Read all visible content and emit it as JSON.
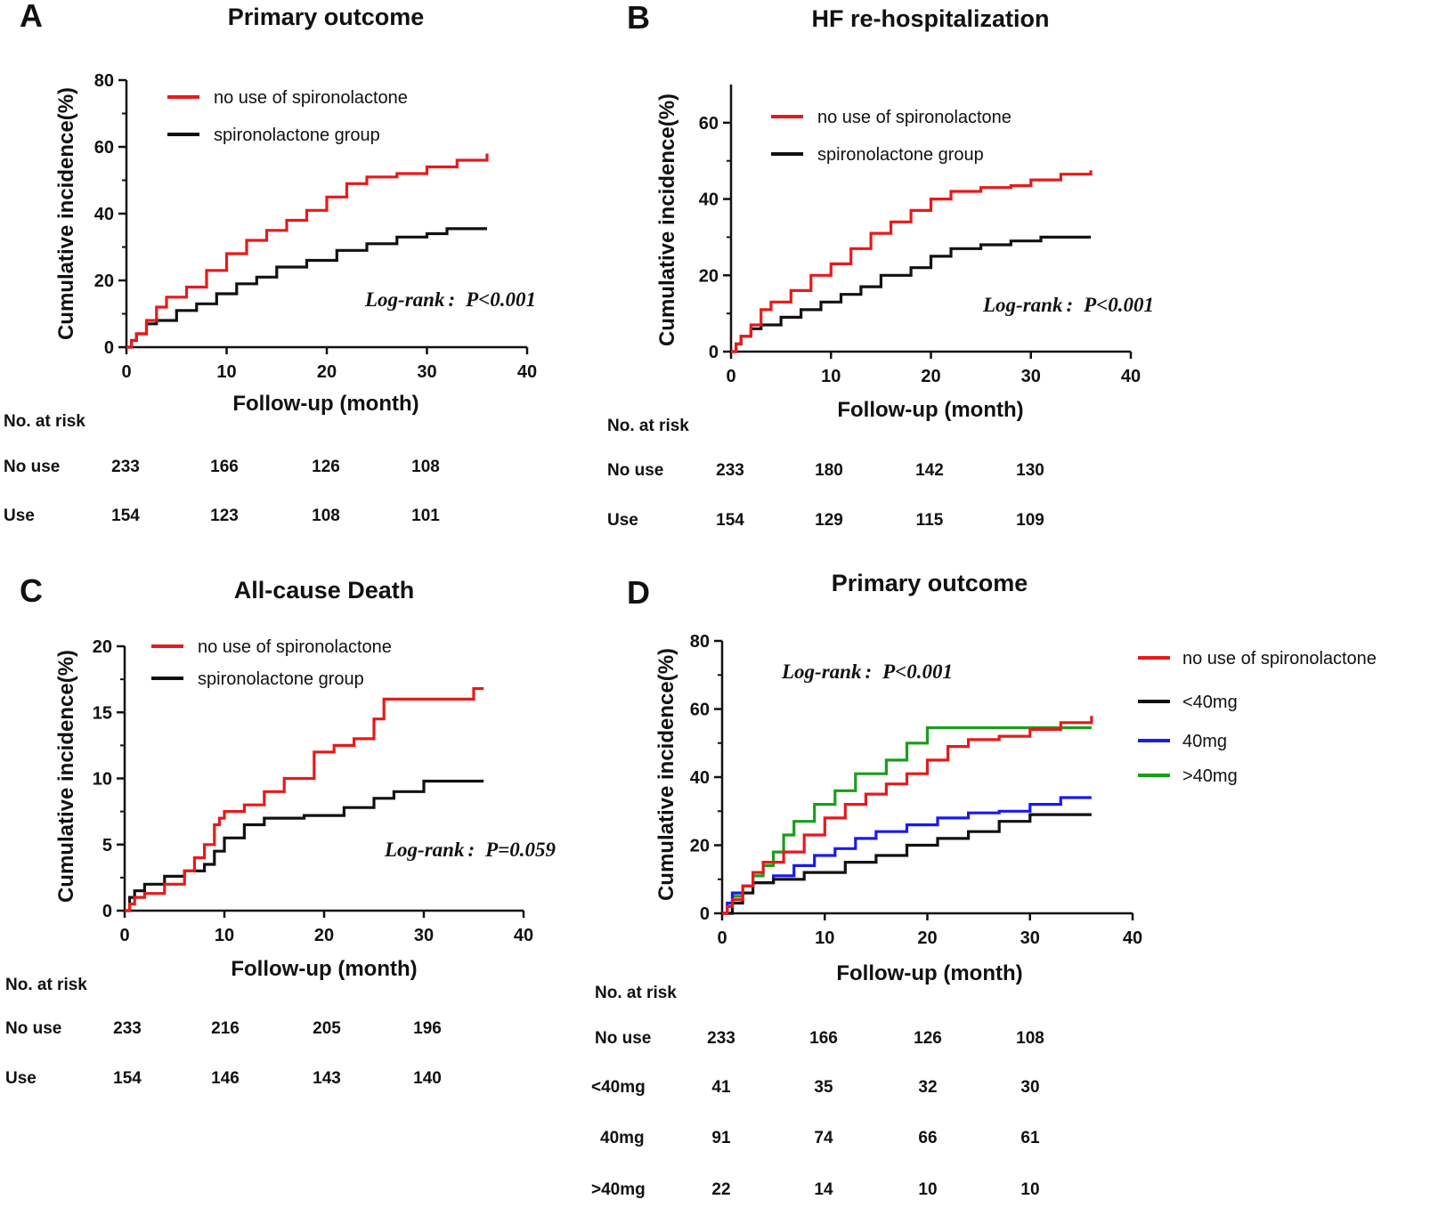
{
  "chart_data": [
    {
      "panel": "A",
      "type": "line",
      "step": true,
      "title": "Primary outcome",
      "xlabel": "Follow-up (month)",
      "ylabel": "Cumulative incidence(%)",
      "xlim": [
        0,
        40
      ],
      "ylim": [
        0,
        80
      ],
      "xticks": [
        0,
        10,
        20,
        30,
        40
      ],
      "yticks": [
        0,
        20,
        40,
        60,
        80
      ],
      "legend_position": "top-left",
      "annotation": {
        "prefix": "Log-rank",
        "sep": ":",
        "pvalue": "P<0.001"
      },
      "series": [
        {
          "name": "no use of spironolactone",
          "color": "#e81919",
          "x": [
            0,
            0.5,
            1,
            2,
            3,
            4,
            6,
            8,
            10,
            12,
            14,
            16,
            18,
            20,
            22,
            24,
            27,
            30,
            33,
            36
          ],
          "y": [
            0,
            2,
            4,
            8,
            12,
            15,
            18,
            23,
            28,
            32,
            35,
            38,
            41,
            45,
            49,
            51,
            52,
            54,
            56,
            58
          ]
        },
        {
          "name": "spironolactone group",
          "color": "#111111",
          "x": [
            0,
            0.5,
            1,
            2,
            3,
            5,
            7,
            9,
            11,
            13,
            15,
            18,
            21,
            24,
            27,
            30,
            32,
            36
          ],
          "y": [
            0,
            2,
            4,
            7,
            8,
            11,
            13,
            16,
            19,
            21,
            24,
            26,
            29,
            31,
            33,
            34,
            35.5,
            35.5
          ]
        }
      ],
      "risk_table": {
        "header": "No. at risk",
        "times": [
          0,
          10,
          20,
          30
        ],
        "rows": [
          {
            "label": "No use",
            "values": [
              "233",
              "166",
              "126",
              "108"
            ]
          },
          {
            "label": "Use",
            "values": [
              "154",
              "123",
              "108",
              "101"
            ]
          }
        ]
      }
    },
    {
      "panel": "B",
      "type": "line",
      "step": true,
      "title": "HF re-hospitalization",
      "xlabel": "Follow-up (month)",
      "ylabel": "Cumulative incidence(%)",
      "xlim": [
        0,
        40
      ],
      "ylim": [
        0,
        70
      ],
      "xticks": [
        0,
        10,
        20,
        30,
        40
      ],
      "yticks": [
        0,
        20,
        40,
        60
      ],
      "legend_position": "top-left",
      "annotation": {
        "prefix": "Log-rank",
        "sep": ":",
        "pvalue": "P<0.001"
      },
      "series": [
        {
          "name": "no use of spironolactone",
          "color": "#e81919",
          "x": [
            0,
            0.5,
            1,
            2,
            3,
            4,
            6,
            8,
            10,
            12,
            14,
            16,
            18,
            20,
            22,
            25,
            28,
            30,
            33,
            36
          ],
          "y": [
            0,
            2,
            4,
            7,
            11,
            13,
            16,
            20,
            23,
            27,
            31,
            34,
            37,
            40,
            42,
            43,
            43.5,
            45,
            46.5,
            47.5
          ]
        },
        {
          "name": "spironolactone group",
          "color": "#111111",
          "x": [
            0,
            0.5,
            1,
            2,
            3,
            5,
            7,
            9,
            11,
            13,
            15,
            18,
            20,
            22,
            25,
            28,
            31,
            36
          ],
          "y": [
            0,
            2,
            4,
            6,
            7,
            9,
            11,
            13,
            15,
            17,
            20,
            22,
            25,
            27,
            28,
            29,
            30,
            30
          ]
        }
      ],
      "risk_table": {
        "header": "No. at risk",
        "times": [
          0,
          10,
          20,
          30
        ],
        "rows": [
          {
            "label": "No use",
            "values": [
              "233",
              "180",
              "142",
              "130"
            ]
          },
          {
            "label": "Use",
            "values": [
              "154",
              "129",
              "115",
              "109"
            ]
          }
        ]
      }
    },
    {
      "panel": "C",
      "type": "line",
      "step": true,
      "title": "All-cause Death",
      "xlabel": "Follow-up (month)",
      "ylabel": "Cumulative incidence(%)",
      "xlim": [
        0,
        40
      ],
      "ylim": [
        0,
        20
      ],
      "xticks": [
        0,
        10,
        20,
        30,
        40
      ],
      "yticks": [
        0,
        5,
        10,
        15,
        20
      ],
      "legend_position": "top-left",
      "annotation": {
        "prefix": "Log-rank",
        "sep": ":",
        "pvalue": "P=0.059"
      },
      "series": [
        {
          "name": "no use of spironolactone",
          "color": "#e81919",
          "x": [
            0,
            0.5,
            1,
            2,
            4,
            6,
            7,
            8,
            9,
            9.5,
            10,
            12,
            14,
            16,
            19,
            21,
            23,
            25,
            26,
            30,
            33,
            35,
            36
          ],
          "y": [
            0,
            0.5,
            1,
            1.3,
            2,
            3,
            4,
            5,
            6.5,
            7,
            7.5,
            8,
            9,
            10,
            12,
            12.5,
            13,
            14.5,
            16,
            16,
            16,
            16.8,
            16.8
          ]
        },
        {
          "name": "spironolactone group",
          "color": "#111111",
          "x": [
            0,
            0.5,
            1,
            2,
            4,
            6,
            8,
            9,
            10,
            12,
            14,
            18,
            22,
            25,
            27,
            30,
            36
          ],
          "y": [
            0,
            1,
            1.5,
            2,
            2.6,
            3,
            3.5,
            4.5,
            5.5,
            6.5,
            7,
            7.2,
            7.8,
            8.5,
            9,
            9.8,
            9.8
          ]
        }
      ],
      "risk_table": {
        "header": "No. at risk",
        "times": [
          0,
          10,
          20,
          30
        ],
        "rows": [
          {
            "label": "No use",
            "values": [
              "233",
              "216",
              "205",
              "196"
            ]
          },
          {
            "label": "Use",
            "values": [
              "154",
              "146",
              "143",
              "140"
            ]
          }
        ]
      }
    },
    {
      "panel": "D",
      "type": "line",
      "step": true,
      "title": "Primary outcome",
      "xlabel": "Follow-up (month)",
      "ylabel": "Cumulative incidence(%)",
      "xlim": [
        0,
        40
      ],
      "ylim": [
        0,
        80
      ],
      "xticks": [
        0,
        10,
        20,
        30,
        40
      ],
      "yticks": [
        0,
        20,
        40,
        60,
        80
      ],
      "legend_position": "right",
      "annotation": {
        "prefix": "Log-rank",
        "sep": ":",
        "pvalue": "P<0.001"
      },
      "series": [
        {
          "name": "no use of spironolactone",
          "color": "#e81919",
          "x": [
            0,
            0.5,
            1,
            2,
            3,
            4,
            6,
            8,
            10,
            12,
            14,
            16,
            18,
            20,
            22,
            24,
            27,
            30,
            33,
            36
          ],
          "y": [
            0,
            2,
            4,
            8,
            12,
            15,
            18,
            23,
            28,
            32,
            35,
            38,
            41,
            45,
            49,
            51,
            52,
            54,
            56,
            58
          ]
        },
        {
          "name": "<40mg",
          "color": "#111111",
          "x": [
            0,
            1,
            2,
            3,
            5,
            8,
            12,
            15,
            18,
            21,
            24,
            27,
            30,
            36
          ],
          "y": [
            0,
            3,
            6,
            9,
            10,
            12,
            15,
            17,
            20,
            22,
            24,
            27,
            29,
            29
          ]
        },
        {
          "name": "40mg",
          "color": "#1a1aee",
          "x": [
            0,
            0.5,
            1,
            2,
            3,
            5,
            7,
            9,
            11,
            13,
            15,
            18,
            21,
            24,
            27,
            30,
            33,
            36
          ],
          "y": [
            0,
            3,
            6,
            8,
            9,
            11,
            14,
            17,
            19,
            22,
            24,
            26,
            28,
            29.5,
            30,
            32,
            34,
            34
          ]
        },
        {
          "name": ">40mg",
          "color": "#1a9e1a",
          "x": [
            0,
            1,
            2,
            3,
            4,
            5,
            6,
            7,
            9,
            11,
            13,
            16,
            18,
            20,
            36
          ],
          "y": [
            0,
            5,
            8,
            11,
            14,
            18,
            23,
            27,
            32,
            36,
            41,
            45,
            50,
            54.5,
            54.5
          ]
        }
      ],
      "risk_table": {
        "header": "No. at risk",
        "times": [
          0,
          10,
          20,
          30
        ],
        "rows": [
          {
            "label": "No use",
            "values": [
              "233",
              "166",
              "126",
              "108"
            ]
          },
          {
            "label": "<40mg",
            "values": [
              "41",
              "35",
              "32",
              "30"
            ]
          },
          {
            "label": "40mg",
            "values": [
              "91",
              "74",
              "66",
              "61"
            ]
          },
          {
            "label": ">40mg",
            "values": [
              "22",
              "14",
              "10",
              "10"
            ]
          }
        ]
      }
    }
  ]
}
